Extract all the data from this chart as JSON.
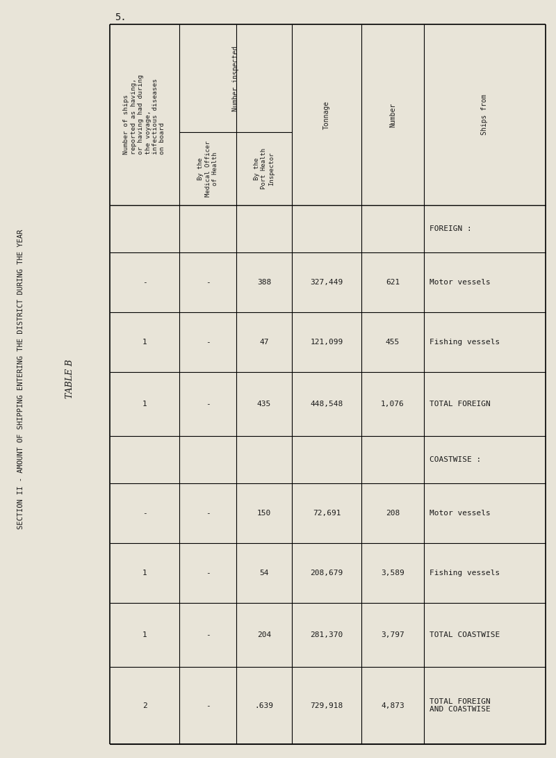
{
  "title_section": "SECTION II - AMOUNT OF SHIPPING ENTERING THE DISTRICT DURING THE YEAR",
  "subtitle": "TABLE B",
  "page_number": "5.",
  "background_color": "#e8e4d8",
  "text_color": "#1a1a1a",
  "col_headers": [
    "Number of ships\nreported as having,\nor having had during\nthe voyage,\ninfectious diseases\non board",
    "Number inspected",
    "By the\nMedical Officer\nof Health",
    "By the\nPort Health\nInspector",
    "Tonnage",
    "Number",
    "Ships from"
  ],
  "rows": [
    {
      "ships_from": "FOREIGN :",
      "number": "",
      "tonnage": "",
      "med_officer": "",
      "port_inspector": "",
      "diseases": ""
    },
    {
      "ships_from": "Motor vessels",
      "number": "621",
      "tonnage": "327,449",
      "med_officer": "- -",
      "port_inspector": "388",
      "diseases": "- 1"
    },
    {
      "ships_from": "Fishing vessels",
      "number": "455",
      "tonnage": "121,099",
      "med_officer": "",
      "port_inspector": "47",
      "diseases": ""
    },
    {
      "ships_from": "TOTAL FOREIGN",
      "number": "1,076",
      "tonnage": "448,548",
      "med_officer": "-",
      "port_inspector": "435",
      "diseases": "1"
    },
    {
      "ships_from": "COASTWISE :",
      "number": "",
      "tonnage": "",
      "med_officer": "",
      "port_inspector": "",
      "diseases": ""
    },
    {
      "ships_from": "Motor vessels",
      "number": "208",
      "tonnage": "72,691",
      "med_officer": "- -",
      "port_inspector": "150",
      "diseases": "- 1"
    },
    {
      "ships_from": "Fishing vessels",
      "number": "3,589",
      "tonnage": "208,679",
      "med_officer": "",
      "port_inspector": "54",
      "diseases": ""
    },
    {
      "ships_from": "TOTAL COASTWISE",
      "number": "3,797",
      "tonnage": "281,370",
      "med_officer": "-",
      "port_inspector": "204",
      "diseases": "1"
    },
    {
      "ships_from": "TOTAL FOREIGN\nAND COASTWISE",
      "number": "4,873",
      "tonnage": "729,918",
      "med_officer": "-",
      "port_inspector": ".639",
      "diseases": "2"
    }
  ]
}
